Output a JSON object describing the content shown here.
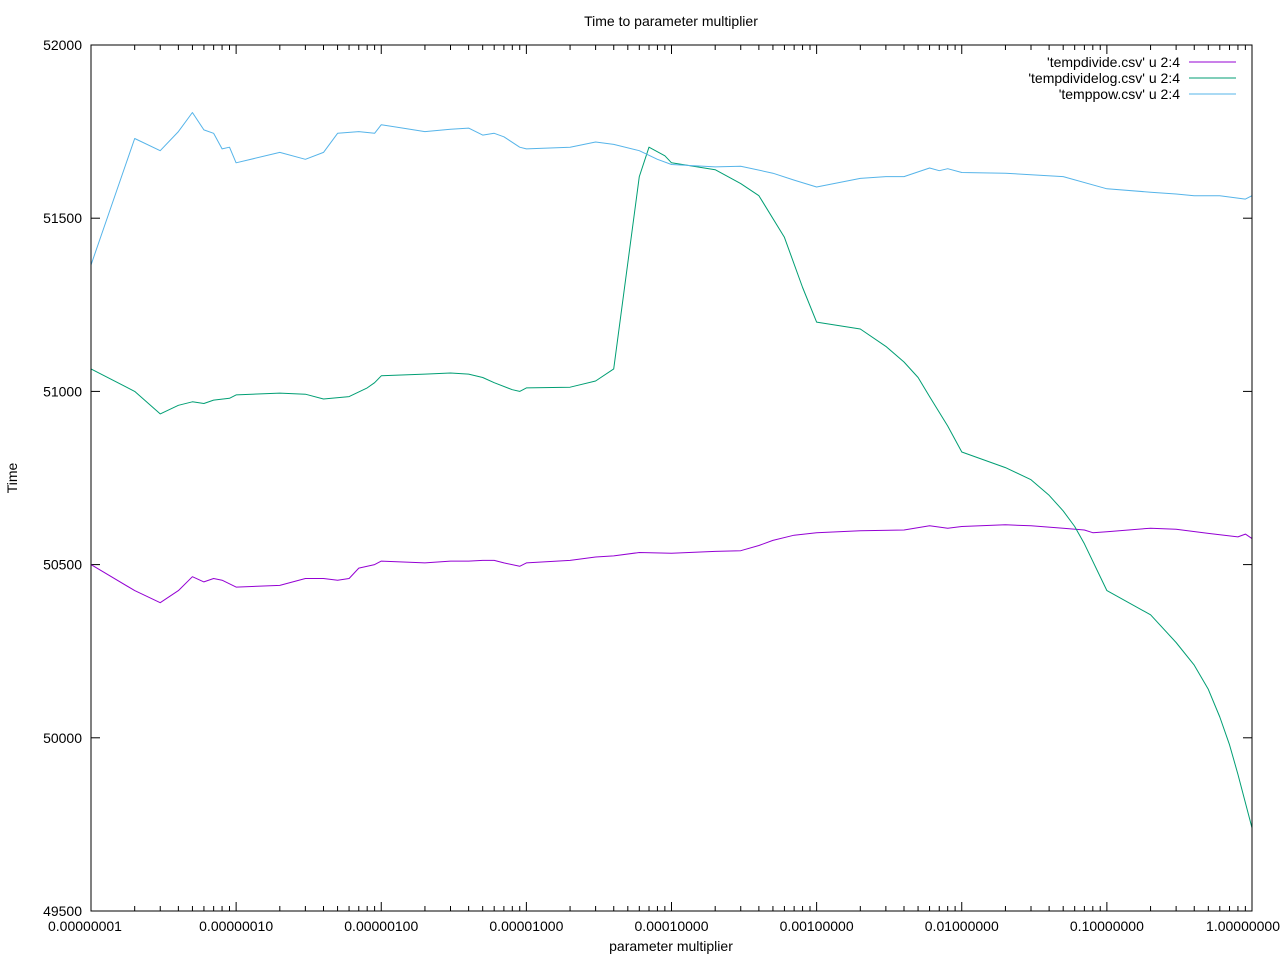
{
  "chart_data": {
    "type": "line",
    "title": "Time to parameter multiplier",
    "xlabel": "parameter multiplier",
    "ylabel": "Time",
    "xscale": "log",
    "xlim": [
      1e-08,
      1.0
    ],
    "ylim": [
      49500,
      52000
    ],
    "grid": false,
    "legend_position": "top-right",
    "x_ticks": [
      1e-08,
      1e-07,
      1e-06,
      1e-05,
      0.0001,
      0.001,
      0.01,
      0.1,
      1.0
    ],
    "x_tick_labels": [
      "0.00000001",
      "0.00000010",
      "0.00000100",
      "0.00001000",
      "0.00010000",
      "0.00100000",
      "0.01000000",
      "0.10000000",
      "1.00000000"
    ],
    "y_ticks": [
      49500,
      50000,
      50500,
      51000,
      51500,
      52000
    ],
    "y_tick_labels": [
      "49500",
      "50000",
      "50500",
      "51000",
      "51500",
      "52000"
    ],
    "series": [
      {
        "name": "'tempdivide.csv' u 2:4",
        "color": "#9400d3",
        "points": [
          [
            1e-08,
            50500
          ],
          [
            2e-08,
            50425
          ],
          [
            3e-08,
            50390
          ],
          [
            4e-08,
            50425
          ],
          [
            5e-08,
            50465
          ],
          [
            6e-08,
            50450
          ],
          [
            7e-08,
            50460
          ],
          [
            8e-08,
            50455
          ],
          [
            1e-07,
            50435
          ],
          [
            2e-07,
            50440
          ],
          [
            3e-07,
            50460
          ],
          [
            4e-07,
            50460
          ],
          [
            5e-07,
            50455
          ],
          [
            6e-07,
            50460
          ],
          [
            7e-07,
            50490
          ],
          [
            9e-07,
            50500
          ],
          [
            1e-06,
            50510
          ],
          [
            2e-06,
            50505
          ],
          [
            3e-06,
            50510
          ],
          [
            4e-06,
            50510
          ],
          [
            5e-06,
            50512
          ],
          [
            6e-06,
            50512
          ],
          [
            7e-06,
            50505
          ],
          [
            9e-06,
            50495
          ],
          [
            1e-05,
            50505
          ],
          [
            2e-05,
            50512
          ],
          [
            3e-05,
            50522
          ],
          [
            4e-05,
            50525
          ],
          [
            6e-05,
            50535
          ],
          [
            0.0001,
            50533
          ],
          [
            0.0002,
            50538
          ],
          [
            0.0003,
            50540
          ],
          [
            0.0004,
            50555
          ],
          [
            0.0005,
            50570
          ],
          [
            0.0007,
            50585
          ],
          [
            0.001,
            50592
          ],
          [
            0.002,
            50598
          ],
          [
            0.004,
            50600
          ],
          [
            0.006,
            50612
          ],
          [
            0.008,
            50605
          ],
          [
            0.01,
            50610
          ],
          [
            0.02,
            50615
          ],
          [
            0.03,
            50612
          ],
          [
            0.05,
            50605
          ],
          [
            0.07,
            50600
          ],
          [
            0.08,
            50592
          ],
          [
            0.1,
            50595
          ],
          [
            0.2,
            50605
          ],
          [
            0.3,
            50602
          ],
          [
            0.5,
            50590
          ],
          [
            0.8,
            50580
          ],
          [
            0.9,
            50588
          ],
          [
            1.0,
            50575
          ]
        ]
      },
      {
        "name": "'tempdividelog.csv' u 2:4",
        "color": "#009e73",
        "points": [
          [
            1e-08,
            51065
          ],
          [
            2e-08,
            51000
          ],
          [
            3e-08,
            50935
          ],
          [
            4e-08,
            50960
          ],
          [
            5e-08,
            50970
          ],
          [
            6e-08,
            50965
          ],
          [
            7e-08,
            50975
          ],
          [
            9e-08,
            50980
          ],
          [
            1e-07,
            50990
          ],
          [
            2e-07,
            50995
          ],
          [
            3e-07,
            50992
          ],
          [
            4e-07,
            50978
          ],
          [
            6e-07,
            50985
          ],
          [
            8e-07,
            51010
          ],
          [
            9e-07,
            51025
          ],
          [
            1e-06,
            51045
          ],
          [
            2e-06,
            51050
          ],
          [
            3e-06,
            51053
          ],
          [
            4e-06,
            51050
          ],
          [
            5e-06,
            51040
          ],
          [
            6e-06,
            51025
          ],
          [
            8e-06,
            51005
          ],
          [
            9e-06,
            51000
          ],
          [
            1e-05,
            51010
          ],
          [
            2e-05,
            51012
          ],
          [
            3e-05,
            51030
          ],
          [
            4e-05,
            51065
          ],
          [
            6e-05,
            51620
          ],
          [
            7e-05,
            51705
          ],
          [
            9e-05,
            51680
          ],
          [
            0.0001,
            51660
          ],
          [
            0.0002,
            51640
          ],
          [
            0.0003,
            51600
          ],
          [
            0.0004,
            51565
          ],
          [
            0.0006,
            51445
          ],
          [
            0.0008,
            51300
          ],
          [
            0.001,
            51200
          ],
          [
            0.002,
            51180
          ],
          [
            0.003,
            51130
          ],
          [
            0.004,
            51085
          ],
          [
            0.005,
            51040
          ],
          [
            0.006,
            50985
          ],
          [
            0.008,
            50900
          ],
          [
            0.01,
            50825
          ],
          [
            0.02,
            50780
          ],
          [
            0.03,
            50745
          ],
          [
            0.04,
            50700
          ],
          [
            0.05,
            50655
          ],
          [
            0.06,
            50610
          ],
          [
            0.07,
            50560
          ],
          [
            0.1,
            50425
          ],
          [
            0.2,
            50355
          ],
          [
            0.3,
            50275
          ],
          [
            0.4,
            50210
          ],
          [
            0.5,
            50140
          ],
          [
            0.6,
            50060
          ],
          [
            0.7,
            49980
          ],
          [
            0.8,
            49895
          ],
          [
            1.0,
            49740
          ]
        ]
      },
      {
        "name": "'temppow.csv' u 2:4",
        "color": "#56b4e9",
        "points": [
          [
            1e-08,
            51365
          ],
          [
            2e-08,
            51730
          ],
          [
            3e-08,
            51695
          ],
          [
            4e-08,
            51750
          ],
          [
            5e-08,
            51805
          ],
          [
            6e-08,
            51755
          ],
          [
            7e-08,
            51745
          ],
          [
            8e-08,
            51700
          ],
          [
            9e-08,
            51705
          ],
          [
            1e-07,
            51660
          ],
          [
            2e-07,
            51690
          ],
          [
            3e-07,
            51670
          ],
          [
            4e-07,
            51690
          ],
          [
            5e-07,
            51745
          ],
          [
            7e-07,
            51750
          ],
          [
            9e-07,
            51745
          ],
          [
            1e-06,
            51770
          ],
          [
            2e-06,
            51750
          ],
          [
            3e-06,
            51757
          ],
          [
            4e-06,
            51760
          ],
          [
            5e-06,
            51740
          ],
          [
            6e-06,
            51745
          ],
          [
            7e-06,
            51735
          ],
          [
            9e-06,
            51705
          ],
          [
            1e-05,
            51700
          ],
          [
            2e-05,
            51705
          ],
          [
            3e-05,
            51720
          ],
          [
            4e-05,
            51713
          ],
          [
            6e-05,
            51695
          ],
          [
            8e-05,
            51670
          ],
          [
            0.0001,
            51655
          ],
          [
            0.0002,
            51648
          ],
          [
            0.0003,
            51650
          ],
          [
            0.0005,
            51630
          ],
          [
            0.0007,
            51610
          ],
          [
            0.001,
            51590
          ],
          [
            0.002,
            51615
          ],
          [
            0.003,
            51620
          ],
          [
            0.004,
            51620
          ],
          [
            0.006,
            51645
          ],
          [
            0.007,
            51637
          ],
          [
            0.008,
            51643
          ],
          [
            0.01,
            51632
          ],
          [
            0.02,
            51630
          ],
          [
            0.05,
            51620
          ],
          [
            0.1,
            51585
          ],
          [
            0.2,
            51575
          ],
          [
            0.3,
            51570
          ],
          [
            0.4,
            51565
          ],
          [
            0.6,
            51565
          ],
          [
            0.9,
            51555
          ],
          [
            1.0,
            51565
          ]
        ]
      }
    ]
  }
}
